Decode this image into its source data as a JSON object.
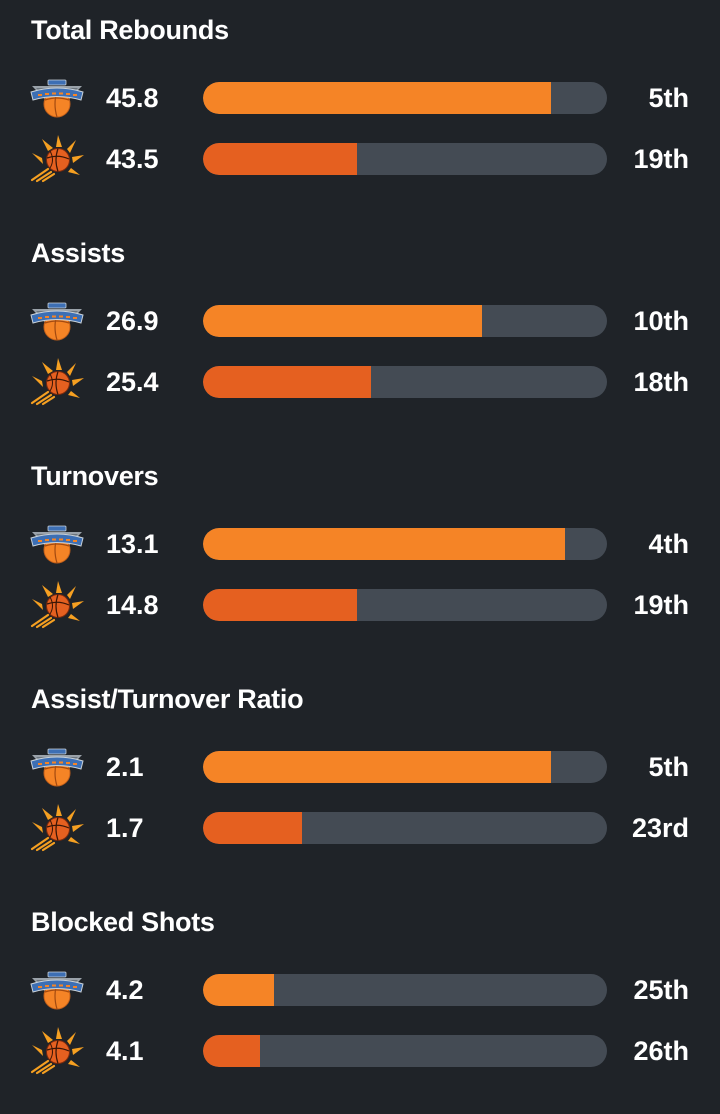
{
  "colors": {
    "background": "#1f2328",
    "track": "#444b54",
    "team1_fill": "#f58426",
    "team2_fill": "#e56020",
    "text": "#ffffff"
  },
  "teams": [
    {
      "id": "knicks",
      "icon": "knicks-logo-icon"
    },
    {
      "id": "suns",
      "icon": "suns-logo-icon"
    }
  ],
  "stats": [
    {
      "title": "Total Rebounds",
      "rows": [
        {
          "team": "knicks",
          "value": "45.8",
          "rank": "5th",
          "fill_fraction": 0.862
        },
        {
          "team": "suns",
          "value": "43.5",
          "rank": "19th",
          "fill_fraction": 0.382
        }
      ]
    },
    {
      "title": "Assists",
      "rows": [
        {
          "team": "knicks",
          "value": "26.9",
          "rank": "10th",
          "fill_fraction": 0.691
        },
        {
          "team": "suns",
          "value": "25.4",
          "rank": "18th",
          "fill_fraction": 0.416
        }
      ]
    },
    {
      "title": "Turnovers",
      "rows": [
        {
          "team": "knicks",
          "value": "13.1",
          "rank": "4th",
          "fill_fraction": 0.897
        },
        {
          "team": "suns",
          "value": "14.8",
          "rank": "19th",
          "fill_fraction": 0.382
        }
      ]
    },
    {
      "title": "Assist/Turnover Ratio",
      "rows": [
        {
          "team": "knicks",
          "value": "2.1",
          "rank": "5th",
          "fill_fraction": 0.862
        },
        {
          "team": "suns",
          "value": "1.7",
          "rank": "23rd",
          "fill_fraction": 0.245
        }
      ]
    },
    {
      "title": "Blocked Shots",
      "rows": [
        {
          "team": "knicks",
          "value": "4.2",
          "rank": "25th",
          "fill_fraction": 0.176
        },
        {
          "team": "suns",
          "value": "4.1",
          "rank": "26th",
          "fill_fraction": 0.142
        }
      ]
    }
  ]
}
